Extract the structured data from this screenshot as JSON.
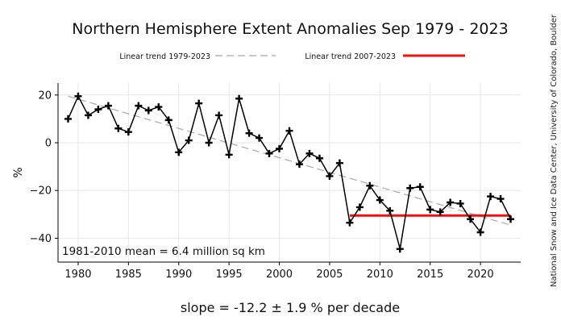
{
  "chart_data": {
    "type": "line",
    "title": "Northern Hemisphere Extent Anomalies Sep 1979 - 2023",
    "xlabel": "",
    "ylabel": "%",
    "xlim": [
      1978,
      2024
    ],
    "ylim": [
      -50,
      25
    ],
    "x_ticks": [
      1980,
      1985,
      1990,
      1995,
      2000,
      2005,
      2010,
      2015,
      2020
    ],
    "y_ticks": [
      -40,
      -20,
      0,
      20
    ],
    "grid": true,
    "legend_position": "top-center",
    "x": [
      1979,
      1980,
      1981,
      1982,
      1983,
      1984,
      1985,
      1986,
      1987,
      1988,
      1989,
      1990,
      1991,
      1992,
      1993,
      1994,
      1995,
      1996,
      1997,
      1998,
      1999,
      2000,
      2001,
      2002,
      2003,
      2004,
      2005,
      2006,
      2007,
      2008,
      2009,
      2010,
      2011,
      2012,
      2013,
      2014,
      2015,
      2016,
      2017,
      2018,
      2019,
      2020,
      2021,
      2022,
      2023
    ],
    "series": [
      {
        "values": [
          10,
          19.5,
          11.5,
          14,
          15.5,
          6,
          4.5,
          15.5,
          13.5,
          15,
          9.5,
          -4,
          1,
          16.5,
          0,
          11.5,
          -5,
          18.5,
          4,
          2,
          -4.5,
          -2.5,
          5,
          -9,
          -4.5,
          -6.5,
          -14,
          -8.5,
          -33.5,
          -27,
          -18,
          -24,
          -28.5,
          -44.5,
          -19,
          -18.5,
          -28,
          -29,
          -25,
          -25.5,
          -32,
          -37.5,
          -22.5,
          -23.5,
          -32
        ],
        "color": "#000000"
      }
    ],
    "trends": [
      {
        "name": "Linear trend 1979-2023",
        "color": "#a8a8a8",
        "style": "dashed",
        "x": [
          1979,
          2023
        ],
        "y": [
          19.5,
          -34.5
        ]
      },
      {
        "name": "Linear trend 2007-2023",
        "color": "#ee1111",
        "style": "solid",
        "x": [
          2007,
          2023
        ],
        "y": [
          -30.5,
          -30.5
        ]
      }
    ],
    "annotation": "1981-2010 mean = 6.4 million sq km",
    "slope_text": "slope = -12.2 ± 1.9 % per decade",
    "credit": "National Snow and Ice Data Center, University of Colorado, Boulder"
  }
}
